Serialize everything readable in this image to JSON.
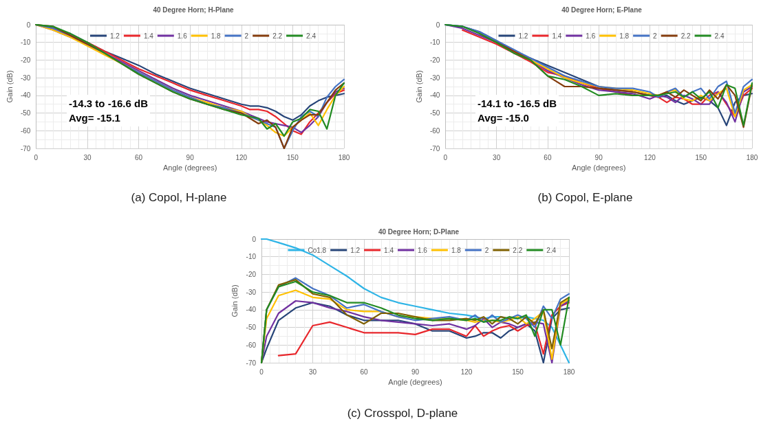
{
  "chart_data": [
    {
      "type": "line",
      "title": "40 Degree Horn; H-Plane",
      "xlabel": "Angle (degrees)",
      "ylabel": "Gain (dB)",
      "annotations": [
        "-14.3 to -16.6 dB",
        "Avg= -15.1",
        "(a) Copol, H-plane"
      ],
      "xlim": [
        0,
        180
      ],
      "xticks": [
        0,
        30,
        60,
        90,
        120,
        150,
        180
      ],
      "ylim": [
        -70,
        0
      ],
      "yticks": [
        -70,
        -60,
        -50,
        -40,
        -30,
        -20,
        -10,
        0
      ],
      "grid": true,
      "legend": "top",
      "marker": "none",
      "line_style": "solid",
      "x": [
        0,
        10,
        20,
        30,
        40,
        50,
        60,
        70,
        80,
        90,
        100,
        110,
        120,
        125,
        130,
        135,
        140,
        145,
        150,
        155,
        160,
        165,
        170,
        175,
        180
      ],
      "series": [
        {
          "name": "1.2",
          "color": "#264478",
          "values": [
            0,
            -2,
            -5,
            -10,
            -15,
            -19,
            -23,
            -28,
            -32,
            -36,
            -39,
            -42,
            -45,
            -46,
            -46,
            -47,
            -49,
            -52,
            -54,
            -51,
            -46,
            -43,
            -41,
            -40,
            -39
          ]
        },
        {
          "name": "1.4",
          "color": "#e8262b",
          "values": [
            0,
            -2,
            -6,
            -10,
            -15,
            -20,
            -25,
            -29,
            -33,
            -37,
            -40,
            -43,
            -46,
            -48,
            -48,
            -49,
            -52,
            -56,
            -60,
            -62,
            -55,
            -50,
            -44,
            -39,
            -37
          ]
        },
        {
          "name": "1.6",
          "color": "#7030a0",
          "values": [
            0,
            -3,
            -7,
            -11,
            -16,
            -21,
            -26,
            -31,
            -36,
            -40,
            -43,
            -46,
            -49,
            -51,
            -53,
            -55,
            -56,
            -57,
            -58,
            -61,
            -57,
            -52,
            -44,
            -38,
            -36
          ]
        },
        {
          "name": "1.8",
          "color": "#ffc000",
          "values": [
            0,
            -3,
            -7,
            -12,
            -17,
            -22,
            -27,
            -32,
            -37,
            -41,
            -44,
            -47,
            -49,
            -52,
            -54,
            -57,
            -61,
            -63,
            -58,
            -54,
            -50,
            -57,
            -48,
            -40,
            -35
          ]
        },
        {
          "name": "2",
          "color": "#4472c4",
          "values": [
            0,
            -2,
            -6,
            -11,
            -16,
            -22,
            -27,
            -32,
            -37,
            -41,
            -45,
            -47,
            -50,
            -52,
            -54,
            -56,
            -58,
            -70,
            -60,
            -52,
            -49,
            -52,
            -41,
            -35,
            -31
          ]
        },
        {
          "name": "2.2",
          "color": "#843c0c",
          "values": [
            0,
            -1,
            -6,
            -11,
            -16,
            -22,
            -28,
            -33,
            -38,
            -42,
            -45,
            -48,
            -50,
            -53,
            -56,
            -54,
            -58,
            -70,
            -58,
            -54,
            -51,
            -51,
            -44,
            -37,
            -33
          ]
        },
        {
          "name": "2.4",
          "color": "#228b22",
          "values": [
            0,
            -1,
            -5,
            -10,
            -16,
            -22,
            -28,
            -33,
            -38,
            -42,
            -45,
            -48,
            -51,
            -52,
            -53,
            -59,
            -56,
            -63,
            -55,
            -53,
            -48,
            -49,
            -59,
            -40,
            -33
          ]
        }
      ]
    },
    {
      "type": "line",
      "title": "40 Degree Horn; E-Plane",
      "xlabel": "Angle (degrees)",
      "ylabel": "Gain (dB)",
      "annotations": [
        "-14.1 to -16.5 dB",
        "Avg= -15.0",
        "(b) Copol, E-plane"
      ],
      "xlim": [
        0,
        180
      ],
      "xticks": [
        0,
        30,
        60,
        90,
        120,
        150,
        180
      ],
      "ylim": [
        -70,
        0
      ],
      "yticks": [
        -70,
        -60,
        -50,
        -40,
        -30,
        -20,
        -10,
        0
      ],
      "grid": true,
      "legend": "top",
      "marker": "none",
      "line_style": "solid",
      "x": [
        0,
        10,
        20,
        30,
        40,
        50,
        60,
        70,
        80,
        90,
        100,
        110,
        120,
        125,
        130,
        135,
        140,
        145,
        150,
        155,
        160,
        165,
        170,
        175,
        180
      ],
      "series": [
        {
          "name": "1.2",
          "color": "#264478",
          "values": [
            0,
            -1,
            -4,
            -9,
            -15,
            -19,
            -23,
            -27,
            -31,
            -35,
            -37,
            -38,
            -40,
            -41,
            -40,
            -43,
            -45,
            -43,
            -41,
            -43,
            -47,
            -57,
            -44,
            -40,
            -39
          ]
        },
        {
          "name": "1.4",
          "color": "#e8262b",
          "values": [
            null,
            -3,
            -7,
            -11,
            -16,
            -21,
            -27,
            -29,
            -33,
            -36,
            -38,
            -40,
            -40,
            -41,
            -44,
            -41,
            -42,
            -45,
            -45,
            -40,
            -38,
            -45,
            -52,
            -40,
            -36
          ]
        },
        {
          "name": "1.6",
          "color": "#7030a0",
          "values": [
            0,
            -2,
            -6,
            -10,
            -15,
            -20,
            -26,
            -30,
            -34,
            -37,
            -38,
            -39,
            -42,
            -40,
            -41,
            -44,
            -40,
            -42,
            -45,
            -45,
            -38,
            -44,
            -55,
            -38,
            -35
          ]
        },
        {
          "name": "1.8",
          "color": "#ffc000",
          "values": [
            null,
            null,
            null,
            null,
            -15,
            -20,
            -25,
            -30,
            -33,
            -35,
            -36,
            -37,
            -39,
            -40,
            -38,
            -37,
            -42,
            -43,
            -40,
            -43,
            -39,
            -36,
            -52,
            -37,
            -34
          ]
        },
        {
          "name": "2",
          "color": "#4472c4",
          "values": [
            0,
            -1,
            -4,
            -9,
            -14,
            -19,
            -24,
            -29,
            -32,
            -35,
            -36,
            -36,
            -38,
            -41,
            -38,
            -36,
            -41,
            -38,
            -36,
            -42,
            -35,
            -32,
            -50,
            -35,
            -31
          ]
        },
        {
          "name": "2.2",
          "color": "#843c0c",
          "values": [
            null,
            null,
            -5,
            -10,
            -15,
            -20,
            -29,
            -35,
            -35,
            -36,
            -37,
            -38,
            -40,
            -40,
            -38,
            -41,
            -37,
            -40,
            -43,
            -37,
            -42,
            -34,
            -40,
            -58,
            -34
          ]
        },
        {
          "name": "2.4",
          "color": "#228b22",
          "values": [
            0,
            -1,
            -5,
            -10,
            -16,
            -20,
            -29,
            -31,
            -35,
            -40,
            -39,
            -40,
            -40,
            -40,
            -39,
            -38,
            -41,
            -38,
            -42,
            -38,
            -47,
            -34,
            -36,
            -57,
            -33
          ]
        }
      ]
    },
    {
      "type": "line",
      "title": "40 Degree Horn; D-Plane",
      "xlabel": "Angle (degrees)",
      "ylabel": "Gain (dB)",
      "annotations": [
        "(c) Crosspol, D-plane"
      ],
      "xlim": [
        0,
        180
      ],
      "xticks": [
        0,
        30,
        60,
        90,
        120,
        150,
        180
      ],
      "ylim": [
        -70,
        0
      ],
      "yticks": [
        -70,
        -60,
        -50,
        -40,
        -30,
        -20,
        -10,
        0
      ],
      "grid": true,
      "legend": "top",
      "marker": "none",
      "line_style": "solid",
      "x": [
        0,
        3,
        10,
        20,
        30,
        40,
        50,
        60,
        70,
        80,
        90,
        100,
        110,
        120,
        125,
        130,
        135,
        140,
        145,
        150,
        155,
        160,
        165,
        170,
        175,
        180
      ],
      "series": [
        {
          "name": "Co1.8",
          "color": "#2eb4e6",
          "values": [
            0,
            0,
            -2,
            -5,
            -9,
            -15,
            -21,
            -28,
            -33,
            -36,
            -38,
            -40,
            -42,
            -43,
            -44,
            -45,
            -44,
            -44,
            -45,
            -45,
            -44,
            -45,
            -46,
            -50,
            -60,
            -70
          ]
        },
        {
          "name": "1.2",
          "color": "#264478",
          "values": [
            -70,
            -62,
            -46,
            -39,
            -36,
            -38,
            -43,
            -46,
            -46,
            -46,
            -48,
            -52,
            -52,
            -56,
            -55,
            -53,
            -53,
            -56,
            -52,
            -50,
            -48,
            -52,
            -70,
            -45,
            -40,
            -39
          ]
        },
        {
          "name": "1.4",
          "color": "#e8262b",
          "values": [
            null,
            null,
            -66,
            -65,
            -49,
            -47,
            -50,
            -53,
            -53,
            -53,
            -54,
            -51,
            -51,
            -55,
            -49,
            -55,
            -52,
            -50,
            -49,
            -52,
            -49,
            -48,
            -65,
            -43,
            -38,
            -36
          ]
        },
        {
          "name": "1.6",
          "color": "#7030a0",
          "values": [
            -70,
            -55,
            -42,
            -35,
            -36,
            -39,
            -41,
            -44,
            -46,
            -47,
            -48,
            -49,
            -48,
            -51,
            -49,
            -45,
            -50,
            -47,
            -48,
            -50,
            -48,
            -47,
            -48,
            -70,
            -38,
            -35
          ]
        },
        {
          "name": "1.8",
          "color": "#ffc000",
          "values": [
            -70,
            -45,
            -32,
            -29,
            -33,
            -34,
            -40,
            -41,
            -41,
            -44,
            -44,
            -45,
            -45,
            -46,
            -47,
            -46,
            -46,
            -47,
            -46,
            -44,
            -48,
            -45,
            -41,
            -68,
            -37,
            -34
          ]
        },
        {
          "name": "2",
          "color": "#4472c4",
          "values": [
            -70,
            -40,
            -27,
            -22,
            -28,
            -32,
            -39,
            -37,
            -41,
            -44,
            -46,
            -45,
            -44,
            -46,
            -43,
            -47,
            -43,
            -47,
            -45,
            -43,
            -45,
            -50,
            -38,
            -45,
            -34,
            -31
          ]
        },
        {
          "name": "2.2",
          "color": "#7f6000",
          "values": [
            -70,
            -40,
            -26,
            -23,
            -31,
            -33,
            -43,
            -48,
            -42,
            -42,
            -44,
            -46,
            -46,
            -45,
            -46,
            -44,
            -48,
            -44,
            -45,
            -48,
            -44,
            -48,
            -40,
            -62,
            -36,
            -33
          ]
        },
        {
          "name": "2.4",
          "color": "#228b22",
          "values": [
            -70,
            -40,
            -27,
            -24,
            -30,
            -32,
            -36,
            -36,
            -39,
            -43,
            -45,
            -46,
            -45,
            -46,
            -45,
            -47,
            -46,
            -46,
            -44,
            -45,
            -43,
            -55,
            -40,
            -40,
            -60,
            -33
          ]
        }
      ]
    }
  ]
}
